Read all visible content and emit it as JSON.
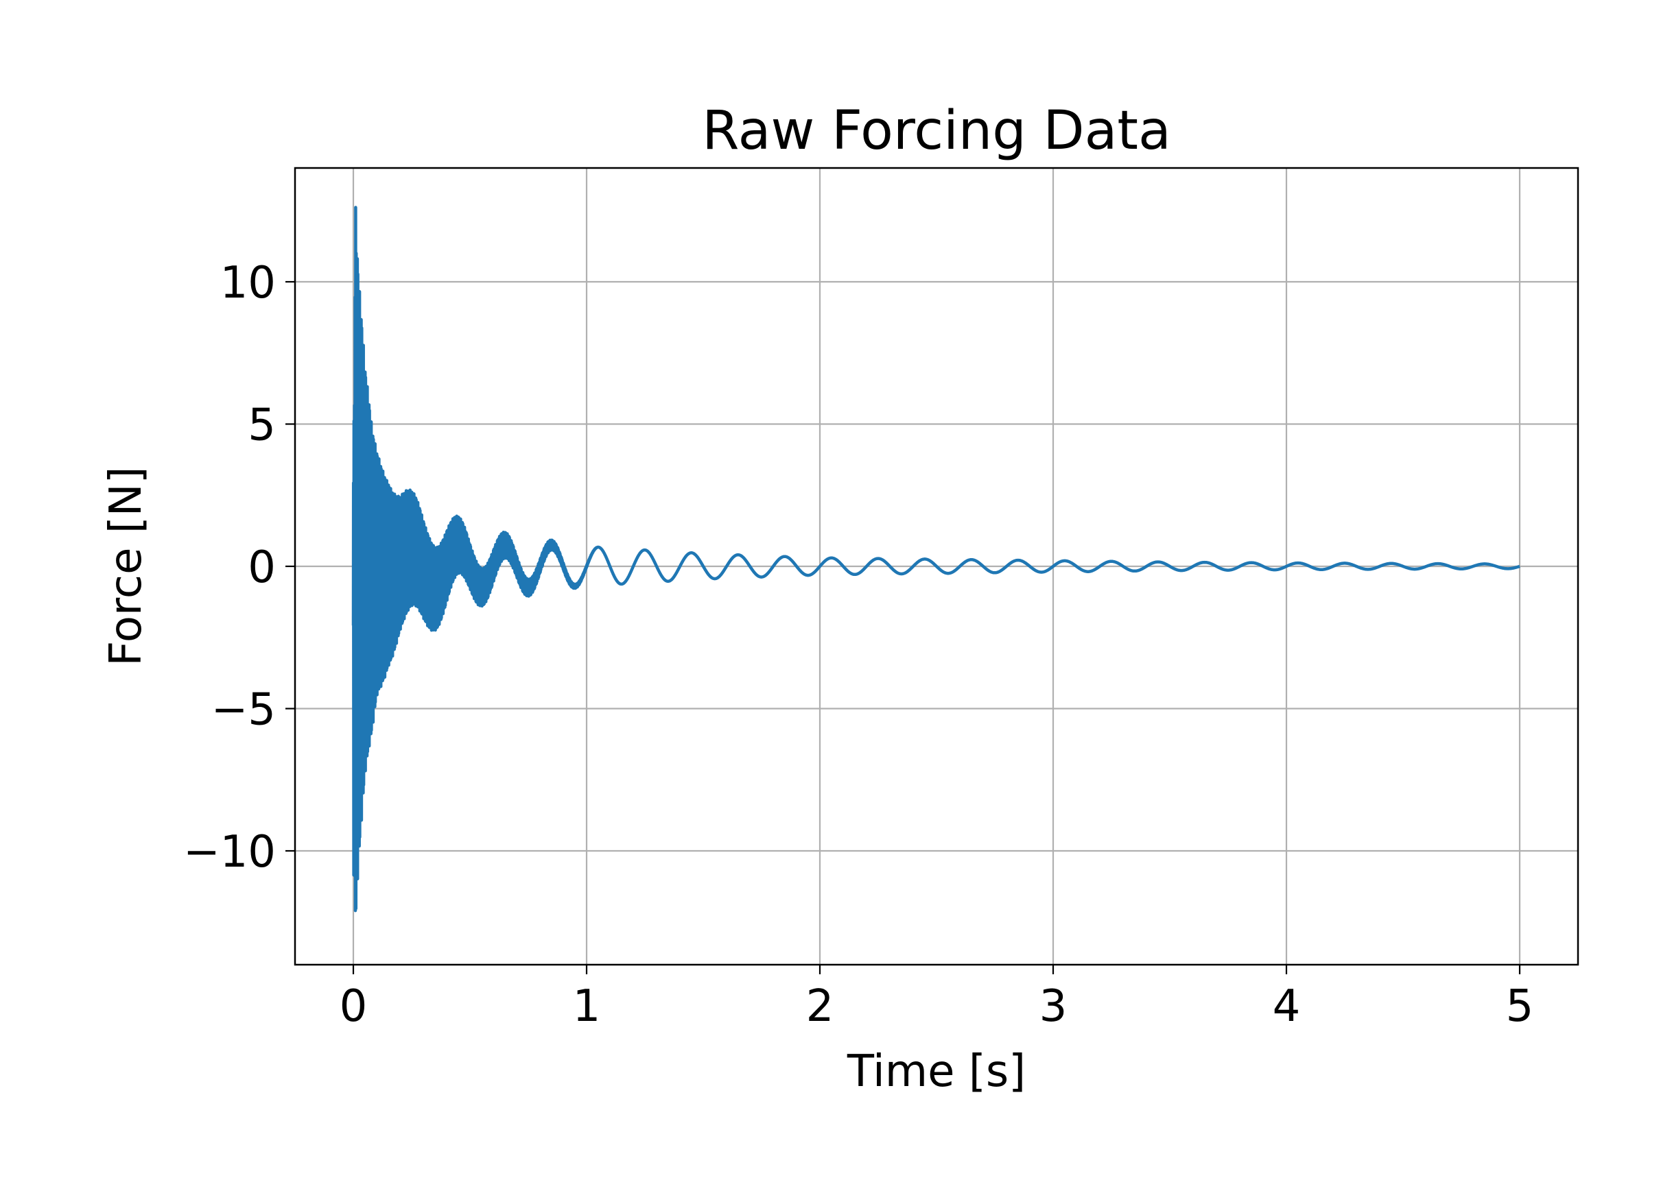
{
  "chart_data": {
    "type": "line",
    "title": "Raw Forcing Data",
    "xlabel": "Time [s]",
    "ylabel": "Force [N]",
    "xlim": [
      -0.25,
      5.25
    ],
    "ylim": [
      -14,
      14
    ],
    "xticks": [
      0,
      1,
      2,
      3,
      4,
      5
    ],
    "xtick_labels": [
      "0",
      "1",
      "2",
      "3",
      "4",
      "5"
    ],
    "yticks": [
      -10,
      -5,
      0,
      5,
      10
    ],
    "ytick_labels": [
      "−10",
      "−5",
      "0",
      "5",
      "10"
    ],
    "grid": true,
    "series": [
      {
        "color": "#1f77b4",
        "peak_envelope": {
          "t": [
            0.0,
            0.01,
            0.02,
            0.05,
            0.08,
            0.1,
            0.15,
            0.2,
            0.3,
            0.4,
            0.5,
            0.6,
            0.7,
            0.8,
            1.0,
            1.2,
            1.5,
            2.0,
            2.5,
            3.0,
            3.5,
            4.0,
            4.5,
            5.0
          ],
          "upper": [
            2.5,
            12.7,
            10.5,
            7.0,
            5.0,
            4.5,
            4.0,
            3.0,
            2.3,
            2.0,
            1.5,
            1.3,
            1.1,
            1.0,
            0.7,
            0.6,
            0.45,
            0.3,
            0.25,
            0.2,
            0.15,
            0.12,
            0.1,
            0.08
          ],
          "lower": [
            -10.5,
            -12.7,
            -11.0,
            -8.0,
            -6.5,
            -5.0,
            -3.5,
            -2.8,
            -2.5,
            -2.0,
            -1.5,
            -1.3,
            -1.1,
            -1.0,
            -0.7,
            -0.6,
            -0.45,
            -0.3,
            -0.25,
            -0.2,
            -0.15,
            -0.12,
            -0.1,
            -0.08
          ]
        },
        "oscillation_frequency_hz": 5
      }
    ]
  }
}
